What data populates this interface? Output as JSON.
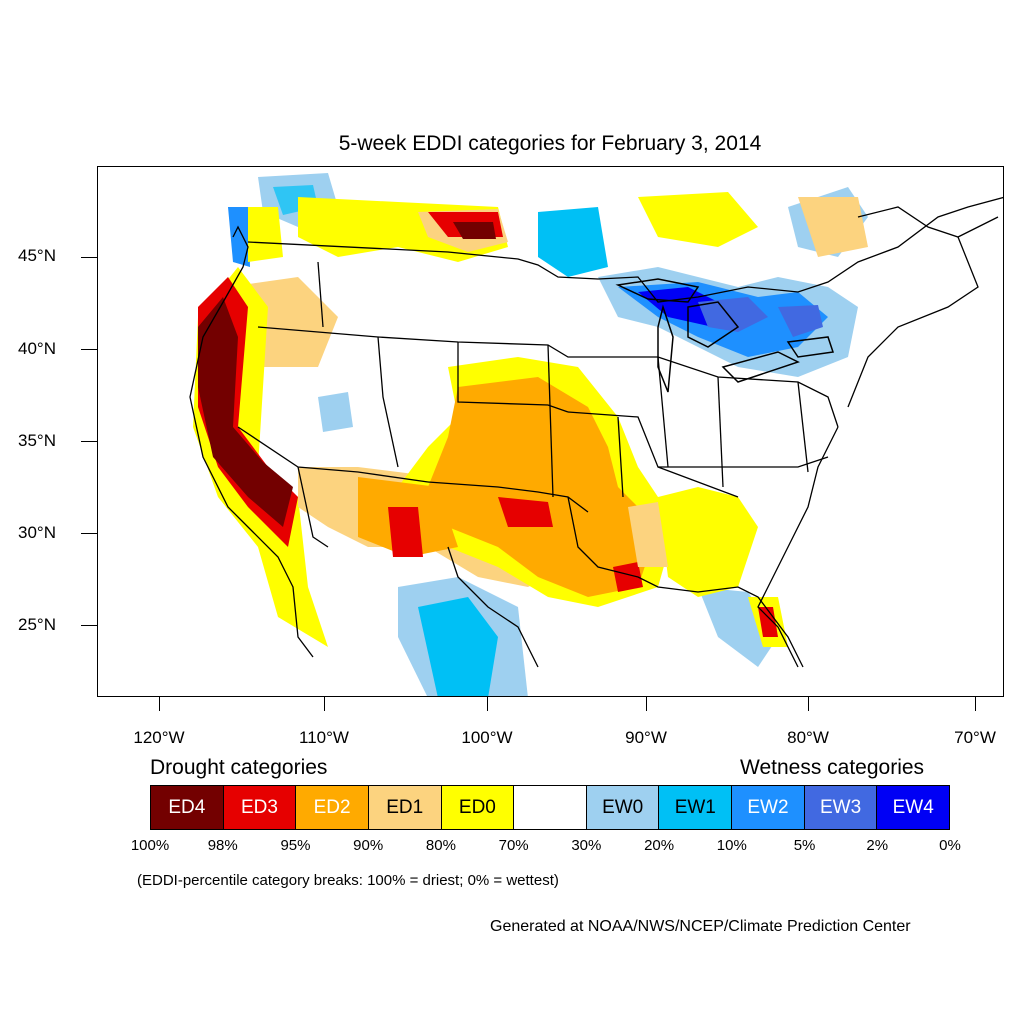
{
  "title": "5-week EDDI categories for February 3, 2014",
  "lat_labels": [
    "45°N",
    "40°N",
    "35°N",
    "30°N",
    "25°N"
  ],
  "lon_labels": [
    "120°W",
    "110°W",
    "100°W",
    "90°W",
    "80°W",
    "70°W"
  ],
  "legend": {
    "drought_heading": "Drought categories",
    "wetness_heading": "Wetness categories",
    "categories": [
      {
        "label": "ED4",
        "color": "#730000",
        "text_color": "#ffffff"
      },
      {
        "label": "ED3",
        "color": "#e60000",
        "text_color": "#ffffff"
      },
      {
        "label": "ED2",
        "color": "#ffaa00",
        "text_color": "#ffffff"
      },
      {
        "label": "ED1",
        "color": "#fcd37f",
        "text_color": "#000000"
      },
      {
        "label": "ED0",
        "color": "#ffff00",
        "text_color": "#000000"
      },
      {
        "label": "",
        "color": "#ffffff",
        "text_color": "#000000"
      },
      {
        "label": "EW0",
        "color": "#9ed0f0",
        "text_color": "#000000"
      },
      {
        "label": "EW1",
        "color": "#00c0f5",
        "text_color": "#000000"
      },
      {
        "label": "EW2",
        "color": "#1e90ff",
        "text_color": "#ffffff"
      },
      {
        "label": "EW3",
        "color": "#4169e1",
        "text_color": "#ffffff"
      },
      {
        "label": "EW4",
        "color": "#0000f5",
        "text_color": "#ffffff"
      }
    ],
    "breaks": [
      "100%",
      "98%",
      "95%",
      "90%",
      "80%",
      "70%",
      "30%",
      "20%",
      "10%",
      "5%",
      "2%",
      "0%"
    ]
  },
  "note": "(EDDI-percentile category breaks: 100% = driest; 0% = wettest)",
  "credit": "Generated at NOAA/NWS/NCEP/Climate Prediction Center"
}
